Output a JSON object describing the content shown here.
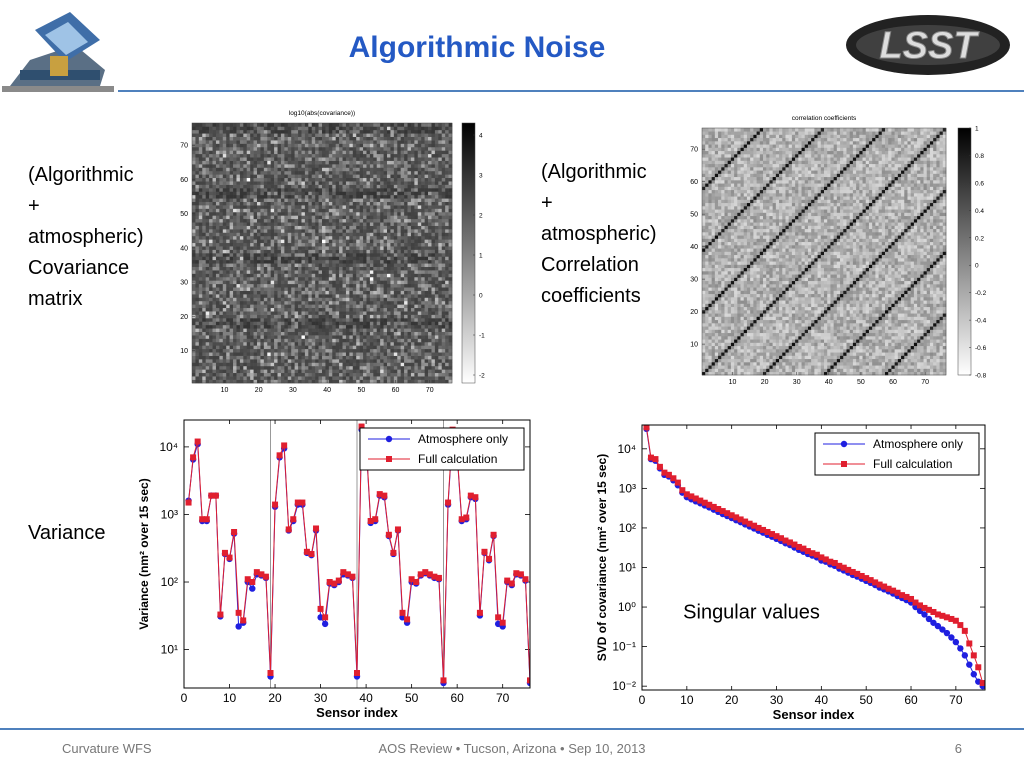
{
  "header": {
    "title": "Algorithmic Noise",
    "logo_text": "LSST"
  },
  "labels": {
    "covariance": [
      "(Algorithmic",
      "+",
      "atmospheric)",
      "Covariance",
      "matrix"
    ],
    "correlation": [
      "(Algorithmic",
      "+",
      "atmospheric)",
      "Correlation",
      "coefficients"
    ],
    "variance": "Variance"
  },
  "footer": {
    "left": "Curvature WFS",
    "center": "AOS Review • Tucson, Arizona • Sep 10, 2013",
    "page": "6"
  },
  "chart_data": [
    {
      "type": "heatmap",
      "title": "log10(abs(covariance))",
      "pattern": "covariance",
      "colormap": "gray",
      "xlim": [
        0.5,
        76.5
      ],
      "ylim": [
        0.5,
        76.5
      ],
      "xticks": [
        10,
        20,
        30,
        40,
        50,
        60,
        70
      ],
      "yticks": [
        10,
        20,
        30,
        40,
        50,
        60,
        70
      ],
      "clim": [
        -2.2,
        4.3
      ],
      "cticks": [
        -2,
        -1,
        0,
        1,
        2,
        3,
        4
      ]
    },
    {
      "type": "heatmap",
      "title": "correlation coefficients",
      "pattern": "correlation",
      "colormap": "gray",
      "xlim": [
        0.5,
        76.5
      ],
      "ylim": [
        0.5,
        76.5
      ],
      "xticks": [
        10,
        20,
        30,
        40,
        50,
        60,
        70
      ],
      "yticks": [
        10,
        20,
        30,
        40,
        50,
        60,
        70
      ],
      "clim": [
        -0.8,
        1
      ],
      "cticks": [
        1,
        0.8,
        0.6,
        0.4,
        0.2,
        0,
        -0.2,
        -0.4,
        -0.6,
        -0.8
      ]
    },
    {
      "type": "line",
      "log_y": true,
      "xlabel": "Sensor index",
      "ylabel": "Variance (nm² over 15 sec)",
      "legend": "upper right",
      "xlim": [
        0,
        76
      ],
      "ylim": [
        2.7,
        25000
      ],
      "xticks": [
        0,
        10,
        20,
        30,
        40,
        50,
        60,
        70
      ],
      "yticks": [
        {
          "value": 10,
          "label": "10¹"
        },
        {
          "value": 100,
          "label": "10²"
        },
        {
          "value": 1000,
          "label": "10³"
        },
        {
          "value": 10000,
          "label": "10⁴"
        }
      ],
      "reference_lines": [
        19,
        38,
        57
      ],
      "x": [
        1,
        2,
        3,
        4,
        5,
        6,
        7,
        8,
        9,
        10,
        11,
        12,
        13,
        14,
        15,
        16,
        17,
        18,
        19,
        20,
        21,
        22,
        23,
        24,
        25,
        26,
        27,
        28,
        29,
        30,
        31,
        32,
        33,
        34,
        35,
        36,
        37,
        38,
        39,
        40,
        41,
        42,
        43,
        44,
        45,
        46,
        47,
        48,
        49,
        50,
        51,
        52,
        53,
        54,
        55,
        56,
        57,
        58,
        59,
        60,
        61,
        62,
        63,
        64,
        65,
        66,
        67,
        68,
        69,
        70,
        71,
        72,
        73,
        74,
        75,
        76
      ],
      "series": [
        {
          "name": "Atmosphere only",
          "color": "#1f1fe0",
          "marker": "circle",
          "values": [
            1600,
            6500,
            11000,
            800,
            800,
            1900,
            1900,
            31,
            260,
            220,
            520,
            22,
            25,
            100,
            80,
            130,
            125,
            115,
            4,
            1300,
            7000,
            9500,
            580,
            800,
            1400,
            1400,
            270,
            250,
            580,
            30,
            24,
            95,
            90,
            100,
            130,
            125,
            115,
            4,
            18000,
            11000,
            750,
            800,
            1900,
            1800,
            480,
            260,
            580,
            30,
            25,
            100,
            95,
            125,
            135,
            125,
            115,
            110,
            3.2,
            1400,
            16000,
            7500,
            800,
            850,
            1800,
            1700,
            32,
            270,
            210,
            480,
            24,
            22,
            100,
            90,
            130,
            125,
            105,
            3.2
          ]
        },
        {
          "name": "Full calculation",
          "color": "#e01f2f",
          "marker": "square",
          "values": [
            1500,
            7000,
            12000,
            850,
            850,
            1900,
            1900,
            33,
            270,
            230,
            550,
            35,
            27,
            110,
            100,
            140,
            130,
            120,
            4.5,
            1400,
            7500,
            10500,
            600,
            850,
            1500,
            1500,
            280,
            260,
            620,
            40,
            30,
            100,
            95,
            105,
            140,
            130,
            120,
            4.5,
            20000,
            12000,
            800,
            850,
            2000,
            1900,
            500,
            270,
            600,
            35,
            28,
            110,
            100,
            130,
            140,
            130,
            120,
            115,
            3.5,
            1500,
            18000,
            8000,
            850,
            900,
            1900,
            1800,
            35,
            280,
            220,
            500,
            30,
            25,
            105,
            95,
            135,
            130,
            110,
            3.5
          ]
        }
      ]
    },
    {
      "type": "line",
      "log_y": true,
      "xlabel": "Sensor index",
      "ylabel": "SVD of covariance (nm² over 15 sec)",
      "legend": "upper right",
      "annotations": [
        "Singular values"
      ],
      "xlim": [
        0,
        76.5
      ],
      "ylim": [
        0.008,
        40000
      ],
      "xticks": [
        0,
        10,
        20,
        30,
        40,
        50,
        60,
        70
      ],
      "yticks": [
        {
          "value": 0.01,
          "label": "10⁻²"
        },
        {
          "value": 0.1,
          "label": "10⁻¹"
        },
        {
          "value": 1,
          "label": "10⁰"
        },
        {
          "value": 10,
          "label": "10¹"
        },
        {
          "value": 100,
          "label": "10²"
        },
        {
          "value": 1000,
          "label": "10³"
        },
        {
          "value": 10000,
          "label": "10⁴"
        }
      ],
      "x": [
        1,
        2,
        3,
        4,
        5,
        6,
        7,
        8,
        9,
        10,
        11,
        12,
        13,
        14,
        15,
        16,
        17,
        18,
        19,
        20,
        21,
        22,
        23,
        24,
        25,
        26,
        27,
        28,
        29,
        30,
        31,
        32,
        33,
        34,
        35,
        36,
        37,
        38,
        39,
        40,
        41,
        42,
        43,
        44,
        45,
        46,
        47,
        48,
        49,
        50,
        51,
        52,
        53,
        54,
        55,
        56,
        57,
        58,
        59,
        60,
        61,
        62,
        63,
        64,
        65,
        66,
        67,
        68,
        69,
        70,
        71,
        72,
        73,
        74,
        75,
        76
      ],
      "series": [
        {
          "name": "Atmosphere only",
          "color": "#1f1fe0",
          "marker": "circle",
          "values": [
            32000,
            5500,
            5000,
            3200,
            2200,
            2000,
            1600,
            1200,
            780,
            600,
            530,
            470,
            420,
            370,
            330,
            290,
            255,
            225,
            200,
            178,
            157,
            140,
            123,
            109,
            97,
            85,
            76,
            67,
            60,
            53,
            47,
            41,
            37,
            32,
            28,
            25,
            22,
            20,
            18,
            15,
            14,
            12,
            11,
            9.4,
            8.4,
            7.4,
            6.5,
            5.9,
            5.2,
            4.6,
            4.1,
            3.6,
            3.1,
            2.8,
            2.5,
            2.2,
            1.9,
            1.7,
            1.5,
            1.3,
            1.0,
            0.8,
            0.65,
            0.5,
            0.4,
            0.33,
            0.27,
            0.22,
            0.17,
            0.13,
            0.09,
            0.06,
            0.035,
            0.02,
            0.013,
            0.01
          ]
        },
        {
          "name": "Full calculation",
          "color": "#e01f2f",
          "marker": "square",
          "values": [
            35000,
            6000,
            5500,
            3500,
            2500,
            2200,
            1800,
            1400,
            900,
            708,
            627,
            555,
            491,
            434,
            385,
            340,
            301,
            267,
            236,
            209,
            185,
            164,
            145,
            128,
            114,
            100,
            89,
            79,
            70,
            62,
            55,
            48,
            43,
            38,
            33,
            30,
            26,
            23,
            21,
            18,
            16,
            14,
            13,
            11,
            9.9,
            8.7,
            7.7,
            6.9,
            6.1,
            5.4,
            4.8,
            4.2,
            3.7,
            3.3,
            2.9,
            2.6,
            2.3,
            2.0,
            1.8,
            1.6,
            1.3,
            1.1,
            0.95,
            0.85,
            0.75,
            0.65,
            0.6,
            0.55,
            0.5,
            0.45,
            0.35,
            0.25,
            0.12,
            0.06,
            0.03,
            0.012
          ]
        }
      ]
    }
  ]
}
